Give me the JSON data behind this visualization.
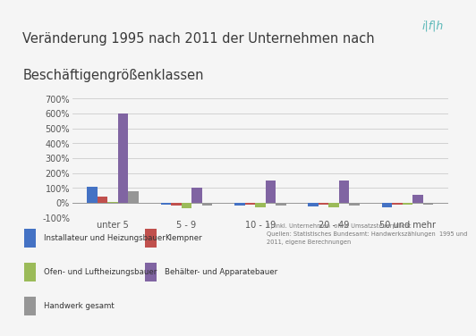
{
  "title_line1": "Veränderung 1995 nach 2011 der Unternehmen nach",
  "title_line2": "Beschäftigengrößenklassen",
  "categories": [
    "unter 5",
    "5 - 9",
    "10 - 19",
    "20 - 49",
    "50 und mehr"
  ],
  "series": {
    "Installateur und Heizungsbauer": [
      110,
      -15,
      -20,
      -25,
      -30
    ],
    "Klempner": [
      40,
      -20,
      -15,
      -10,
      -15
    ],
    "Ofen- und Luftheizungsbauer": [
      5,
      -35,
      -30,
      -30,
      -10
    ],
    "Behälter- und Apparatebauer": [
      600,
      100,
      150,
      150,
      55
    ],
    "Handwerk gesamt": [
      75,
      -20,
      -20,
      -20,
      -10
    ]
  },
  "colors": {
    "Installateur und Heizungsbauer": "#4472C4",
    "Klempner": "#C0504D",
    "Ofen- und Luftheizungsbauer": "#9BBB59",
    "Behälter- und Apparatebauer": "#8064A2",
    "Handwerk gesamt": "#969696"
  },
  "ylim": [
    -100,
    700
  ],
  "yticks": [
    -100,
    0,
    100,
    200,
    300,
    400,
    500,
    600,
    700
  ],
  "background_color": "#f5f5f5",
  "title_bg_color": "#e2e2e2",
  "plot_bg": "#f5f5f5",
  "footnote_line1": "1) inkl. Unternehmen  ohne Umsatzsteuerpflicht",
  "footnote_line2": "Quellen: Statistisches Bundesamt: Handwerkszählungen  1995 und",
  "footnote_line3": "2011, eigene Berechnungen",
  "logo_text": "i|f|h",
  "bar_width": 0.14
}
